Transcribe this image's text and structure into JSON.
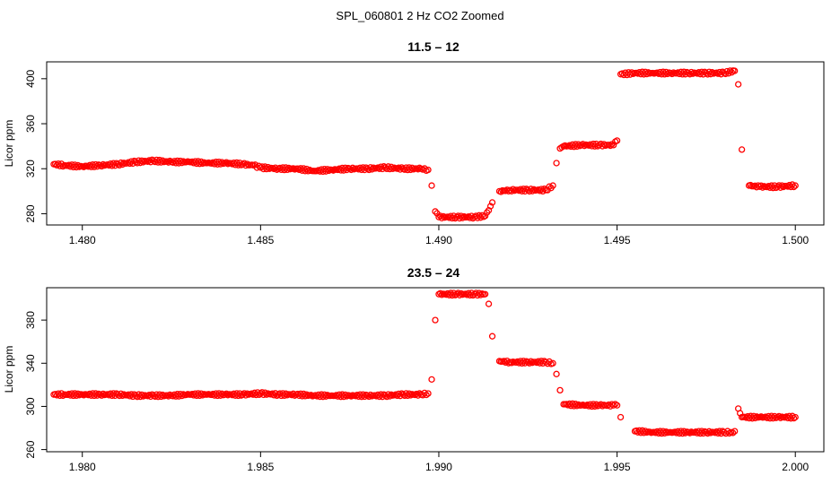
{
  "figure": {
    "suptitle": "SPL_060801  2 Hz CO2 Zoomed"
  },
  "style": {
    "point_color": "#ff0000",
    "axis_color": "#000000",
    "background": "#ffffff"
  },
  "chart_data": [
    {
      "type": "scatter",
      "title": "11.5 – 12",
      "xlabel": "",
      "ylabel": "Licor ppm",
      "xlim": [
        1.479,
        1.5008
      ],
      "ylim": [
        270,
        415
      ],
      "xticks": [
        "1.480",
        "1.485",
        "1.490",
        "1.495",
        "1.500"
      ],
      "xtick_values": [
        1.48,
        1.485,
        1.49,
        1.495,
        1.5
      ],
      "yticks": [
        "280",
        "320",
        "360",
        "400"
      ],
      "ytick_values": [
        280,
        320,
        360,
        400
      ],
      "grid": false,
      "legend": "none",
      "series": [
        {
          "marker": "open-circle",
          "color": "#ff0000",
          "x": [
            1.4792,
            1.4795,
            1.48,
            1.4805,
            1.481,
            1.4815,
            1.482,
            1.4825,
            1.483,
            1.4835,
            1.484,
            1.4845,
            1.4848,
            1.485,
            1.4855,
            1.486,
            1.4865,
            1.487,
            1.4875,
            1.488,
            1.4885,
            1.489,
            1.4895,
            1.4897,
            1.4898,
            1.4899,
            1.49,
            1.4905,
            1.491,
            1.4913,
            1.4914,
            1.4915,
            1.4917,
            1.492,
            1.4925,
            1.493,
            1.4932,
            1.4933,
            1.4934,
            1.4935,
            1.494,
            1.4945,
            1.4949,
            1.495,
            1.4951,
            1.4955,
            1.496,
            1.4965,
            1.497,
            1.4975,
            1.498,
            1.4983,
            1.4984,
            1.4985,
            1.4987,
            1.499,
            1.4995,
            1.5
          ],
          "y": [
            324,
            323,
            322,
            323,
            324,
            326,
            327,
            326,
            326,
            325,
            325,
            324,
            323,
            321,
            320,
            320,
            318,
            319,
            320,
            320,
            321,
            320,
            320,
            319,
            305,
            282,
            277,
            277,
            277,
            278,
            283,
            290,
            300,
            301,
            301,
            301,
            305,
            325,
            338,
            340,
            341,
            341,
            341,
            345,
            404,
            405,
            405,
            405,
            405,
            405,
            405,
            407,
            395,
            337,
            305,
            304,
            304,
            305
          ]
        }
      ]
    },
    {
      "type": "scatter",
      "title": "23.5 – 24",
      "xlabel": "",
      "ylabel": "Licor ppm",
      "xlim": [
        1.979,
        2.0008
      ],
      "ylim": [
        258,
        410
      ],
      "xticks": [
        "1.980",
        "1.985",
        "1.990",
        "1.995",
        "2.000"
      ],
      "xtick_values": [
        1.98,
        1.985,
        1.99,
        1.995,
        2.0
      ],
      "yticks": [
        "260",
        "300",
        "340",
        "380"
      ],
      "ytick_values": [
        260,
        300,
        340,
        380
      ],
      "grid": false,
      "legend": "none",
      "series": [
        {
          "marker": "open-circle",
          "color": "#ff0000",
          "x": [
            1.9792,
            1.9795,
            1.98,
            1.9805,
            1.981,
            1.9815,
            1.982,
            1.9825,
            1.983,
            1.9835,
            1.984,
            1.9845,
            1.985,
            1.9855,
            1.986,
            1.9865,
            1.987,
            1.9875,
            1.988,
            1.9885,
            1.989,
            1.9895,
            1.9897,
            1.9898,
            1.9899,
            1.99,
            1.9905,
            1.991,
            1.9913,
            1.9914,
            1.9915,
            1.9917,
            1.992,
            1.9925,
            1.993,
            1.9932,
            1.9933,
            1.9934,
            1.9935,
            1.994,
            1.9945,
            1.9949,
            1.995,
            1.9951,
            1.9955,
            1.996,
            1.9965,
            1.997,
            1.9975,
            1.998,
            1.9982,
            1.9983,
            1.9984,
            1.9985,
            1.999,
            1.9995,
            2.0
          ],
          "y": [
            311,
            311,
            311,
            311,
            311,
            310,
            310,
            310,
            311,
            311,
            311,
            311,
            312,
            311,
            311,
            310,
            310,
            310,
            310,
            310,
            311,
            311,
            312,
            325,
            380,
            404,
            404,
            404,
            404,
            395,
            365,
            342,
            341,
            341,
            341,
            340,
            330,
            315,
            302,
            301,
            301,
            301,
            301,
            290,
            277,
            276,
            276,
            276,
            276,
            276,
            276,
            277,
            298,
            290,
            290,
            290,
            290
          ]
        }
      ]
    }
  ]
}
